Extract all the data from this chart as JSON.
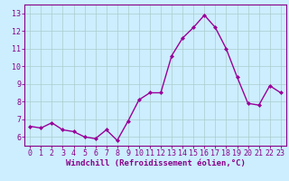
{
  "x": [
    0,
    1,
    2,
    3,
    4,
    5,
    6,
    7,
    8,
    9,
    10,
    11,
    12,
    13,
    14,
    15,
    16,
    17,
    18,
    19,
    20,
    21,
    22,
    23
  ],
  "y": [
    6.6,
    6.5,
    6.8,
    6.4,
    6.3,
    6.0,
    5.9,
    6.4,
    5.8,
    6.9,
    8.1,
    8.5,
    8.5,
    10.6,
    11.6,
    12.2,
    12.9,
    12.2,
    11.0,
    9.4,
    7.9,
    7.8,
    8.9,
    8.5
  ],
  "line_color": "#990099",
  "marker": "D",
  "marker_size": 2.0,
  "line_width": 1.0,
  "bg_color": "#cceeff",
  "grid_color": "#aacccc",
  "xlabel": "Windchill (Refroidissement éolien,°C)",
  "xlabel_color": "#880088",
  "tick_color": "#880088",
  "ylim": [
    5.5,
    13.5
  ],
  "yticks": [
    6,
    7,
    8,
    9,
    10,
    11,
    12,
    13
  ],
  "xlim": [
    -0.5,
    23.5
  ],
  "xticks": [
    0,
    1,
    2,
    3,
    4,
    5,
    6,
    7,
    8,
    9,
    10,
    11,
    12,
    13,
    14,
    15,
    16,
    17,
    18,
    19,
    20,
    21,
    22,
    23
  ],
  "spine_color": "#880088",
  "tick_fontsize": 6.0,
  "xlabel_fontsize": 6.5,
  "xlabel_fontweight": "bold"
}
